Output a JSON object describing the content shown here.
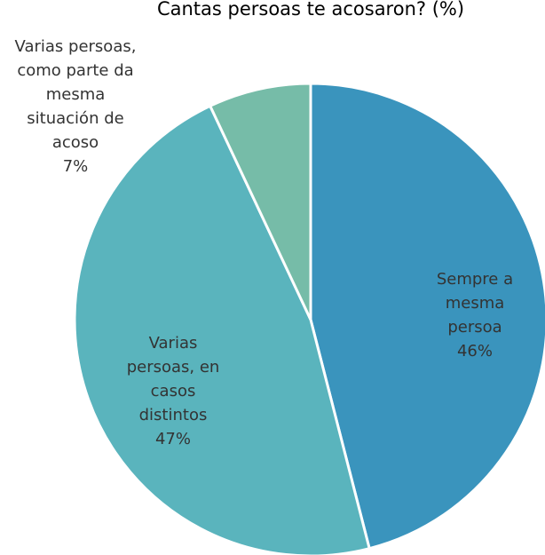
{
  "chart_data": {
    "type": "pie",
    "title": "Cantas persoas te acosaron? (%)",
    "categories": [
      "Sempre a mesma persoa",
      "Varias persoas, en casos distintos",
      "Varias persoas, como parte da mesma situación de acoso"
    ],
    "values": [
      46,
      47,
      7
    ],
    "value_labels": [
      "46%",
      "47%",
      "7%"
    ],
    "colors": [
      "#3a94bd",
      "#5ab4bd",
      "#76bca8"
    ]
  }
}
